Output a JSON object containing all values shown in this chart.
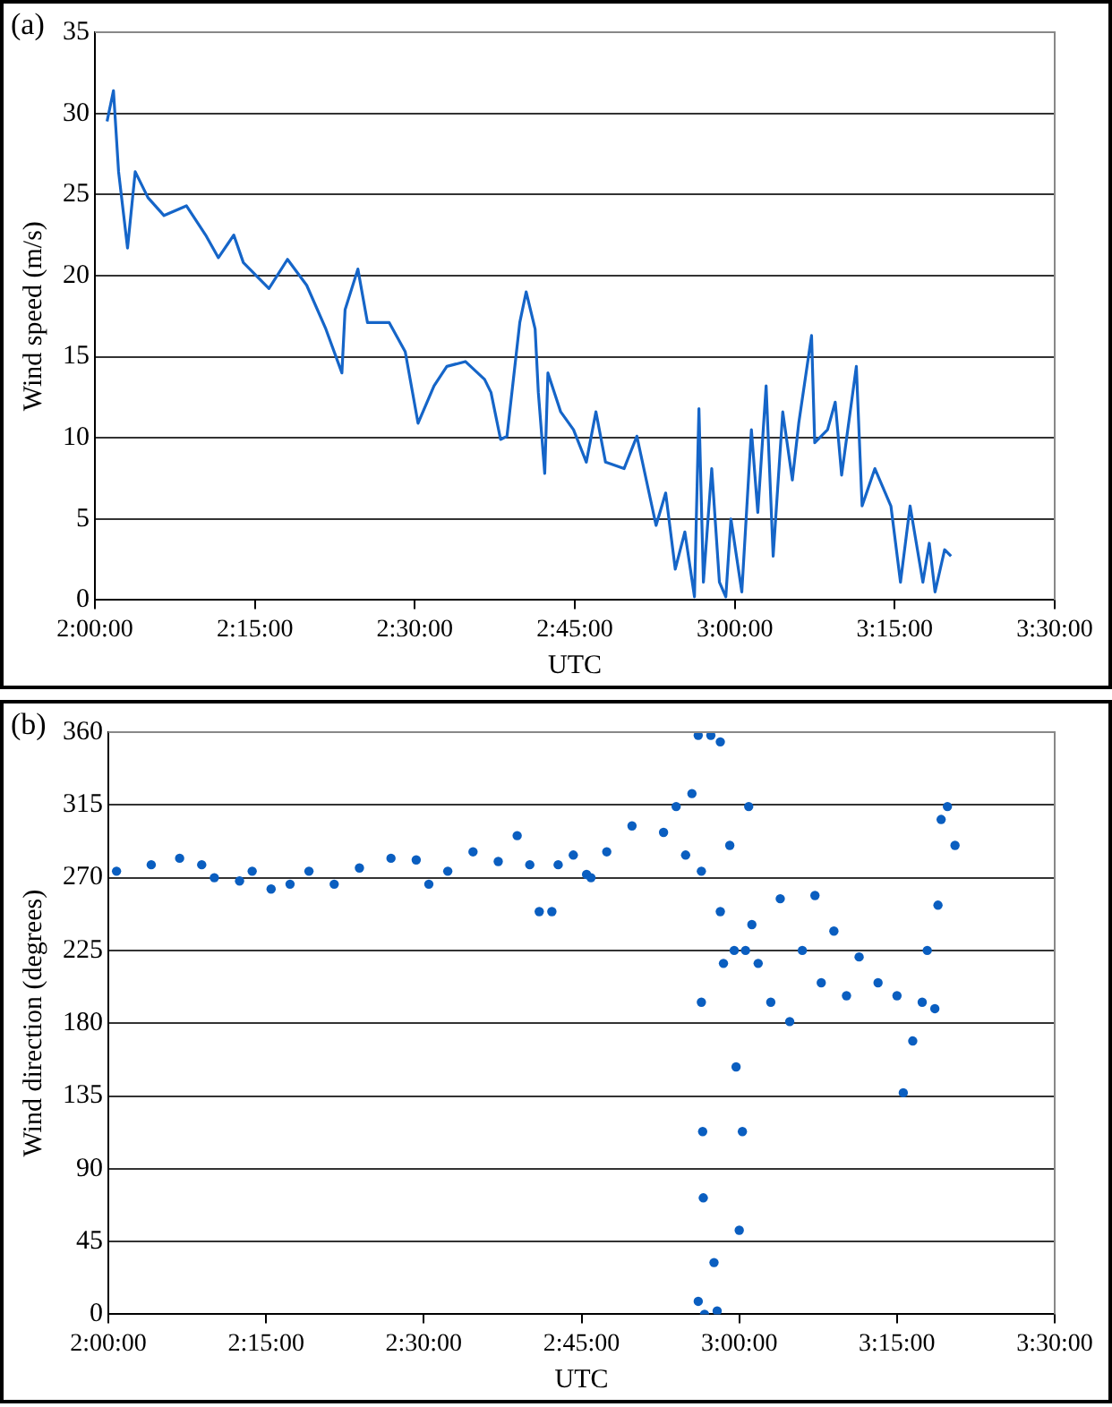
{
  "chart_data": [
    {
      "type": "line",
      "annotations": [
        "(a)"
      ],
      "xlabel": "UTC",
      "ylabel": "Wind speed (m/s)",
      "color": "#1565c8",
      "marker": "none",
      "grid": "y",
      "legend": false,
      "xlim": [
        2,
        3.5
      ],
      "xticks": [
        {
          "value": 2,
          "label": "2:00:00"
        },
        {
          "value": 2.25,
          "label": "2:15:00"
        },
        {
          "value": 2.5,
          "label": "2:30:00"
        },
        {
          "value": 2.75,
          "label": "2:45:00"
        },
        {
          "value": 3,
          "label": "3:00:00"
        },
        {
          "value": 3.25,
          "label": "3:15:00"
        },
        {
          "value": 3.5,
          "label": "3:30:00"
        }
      ],
      "ylim": [
        0,
        35
      ],
      "yticks": [
        0,
        5,
        10,
        15,
        20,
        25,
        30,
        35
      ],
      "x": [
        2.019,
        2.029,
        2.037,
        2.051,
        2.063,
        2.083,
        2.108,
        2.143,
        2.173,
        2.193,
        2.217,
        2.232,
        2.272,
        2.301,
        2.331,
        2.361,
        2.386,
        2.391,
        2.411,
        2.426,
        2.46,
        2.485,
        2.505,
        2.53,
        2.55,
        2.579,
        2.609,
        2.619,
        2.634,
        2.644,
        2.664,
        2.674,
        2.688,
        2.693,
        2.703,
        2.708,
        2.728,
        2.748,
        2.768,
        2.783,
        2.798,
        2.827,
        2.847,
        2.877,
        2.892,
        2.907,
        2.922,
        2.937,
        2.944,
        2.951,
        2.964,
        2.976,
        2.986,
        2.994,
        3.011,
        3.026,
        3.036,
        3.049,
        3.06,
        3.075,
        3.09,
        3.1,
        3.12,
        3.125,
        3.145,
        3.157,
        3.167,
        3.19,
        3.199,
        3.219,
        3.244,
        3.259,
        3.274,
        3.294,
        3.304,
        3.313,
        3.328,
        3.338
      ],
      "values": [
        29.5,
        31.4,
        26.4,
        21.7,
        26.4,
        24.8,
        23.7,
        24.3,
        22.5,
        21.1,
        22.5,
        20.8,
        19.2,
        21,
        19.4,
        16.7,
        14,
        17.9,
        20.4,
        17.1,
        17.1,
        15.3,
        10.9,
        13.2,
        14.4,
        14.7,
        13.6,
        12.8,
        9.9,
        10.1,
        17.1,
        19,
        16.7,
        12.8,
        7.8,
        14,
        11.6,
        10.5,
        8.5,
        11.6,
        8.5,
        8.1,
        10.1,
        4.6,
        6.6,
        1.9,
        4.2,
        0.2,
        11.8,
        1.1,
        8.1,
        1.1,
        0.2,
        5,
        0.5,
        10.5,
        5.4,
        13.2,
        2.7,
        11.6,
        7.4,
        10.9,
        16.3,
        9.7,
        10.5,
        12.2,
        7.7,
        14.4,
        5.8,
        8.1,
        5.8,
        1.1,
        5.8,
        1.1,
        3.5,
        0.5,
        3.1,
        2.7
      ]
    },
    {
      "type": "scatter",
      "annotations": [
        "(b)"
      ],
      "xlabel": "UTC",
      "ylabel": "Wind direction (degrees)",
      "color": "#0a5ec0",
      "marker": "circle",
      "grid": "y",
      "legend": false,
      "xlim": [
        2,
        3.5
      ],
      "xticks": [
        {
          "value": 2,
          "label": "2:00:00"
        },
        {
          "value": 2.25,
          "label": "2:15:00"
        },
        {
          "value": 2.5,
          "label": "2:30:00"
        },
        {
          "value": 2.75,
          "label": "2:45:00"
        },
        {
          "value": 3,
          "label": "3:00:00"
        },
        {
          "value": 3.25,
          "label": "3:15:00"
        },
        {
          "value": 3.5,
          "label": "3:30:00"
        }
      ],
      "ylim": [
        0,
        360
      ],
      "yticks": [
        0,
        45,
        90,
        135,
        180,
        225,
        270,
        315,
        360
      ],
      "x": [
        2.013,
        2.068,
        2.113,
        2.148,
        2.168,
        2.208,
        2.228,
        2.258,
        2.288,
        2.318,
        2.358,
        2.398,
        2.448,
        2.488,
        2.508,
        2.538,
        2.578,
        2.618,
        2.648,
        2.668,
        2.683,
        2.703,
        2.713,
        2.737,
        2.758,
        2.765,
        2.79,
        2.83,
        2.88,
        2.9,
        2.915,
        2.925,
        2.935,
        2.935,
        2.94,
        2.94,
        2.942,
        2.943,
        2.945,
        2.955,
        2.96,
        2.965,
        2.97,
        2.97,
        2.975,
        2.985,
        2.992,
        2.995,
        3,
        3.005,
        3.01,
        3.015,
        3.02,
        3.03,
        3.05,
        3.065,
        3.08,
        3.1,
        3.12,
        3.13,
        3.15,
        3.17,
        3.19,
        3.22,
        3.25,
        3.26,
        3.275,
        3.29,
        3.298,
        3.31,
        3.315,
        3.32,
        3.33,
        3.342
      ],
      "values": [
        274,
        278,
        282,
        278,
        270,
        268,
        274,
        263,
        266,
        274,
        266,
        276,
        282,
        281,
        266,
        274,
        286,
        280,
        296,
        278,
        249,
        249,
        278,
        284,
        272,
        270,
        286,
        302,
        298,
        314,
        284,
        322,
        358,
        8,
        274,
        193,
        113,
        72,
        0,
        358,
        32,
        2,
        354,
        249,
        217,
        290,
        225,
        153,
        52,
        113,
        225,
        314,
        241,
        217,
        193,
        257,
        181,
        225,
        259,
        205,
        237,
        197,
        221,
        205,
        197,
        137,
        169,
        193,
        225,
        189,
        253,
        306,
        314,
        290
      ]
    }
  ]
}
